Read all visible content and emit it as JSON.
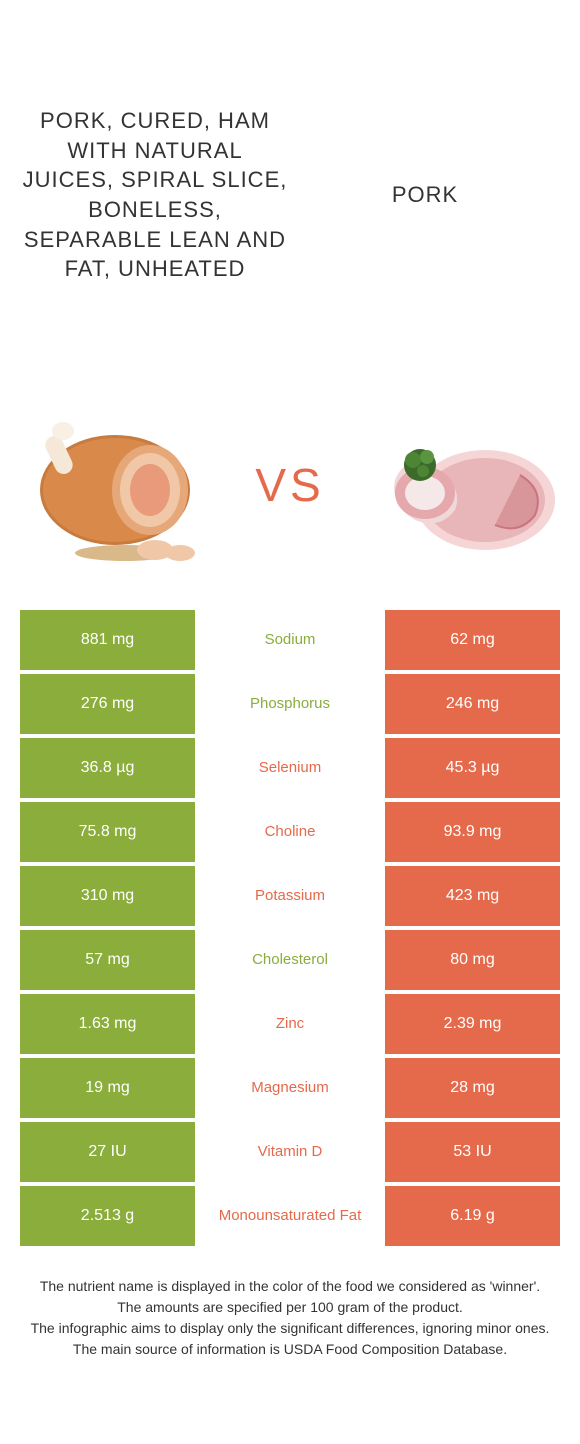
{
  "colors": {
    "green": "#8aad3b",
    "orange": "#e56a4b",
    "text": "#333333",
    "white": "#ffffff"
  },
  "header": {
    "left_title": "PORK, CURED, HAM WITH NATURAL JUICES, SPIRAL SLICE, BONELESS, SEPARABLE LEAN AND FAT, UNHEATED",
    "right_title": "PORK"
  },
  "vs_label": "VS",
  "nutrients": [
    {
      "name": "Sodium",
      "left": "881 mg",
      "right": "62 mg",
      "winner": "left"
    },
    {
      "name": "Phosphorus",
      "left": "276 mg",
      "right": "246 mg",
      "winner": "left"
    },
    {
      "name": "Selenium",
      "left": "36.8 µg",
      "right": "45.3 µg",
      "winner": "right"
    },
    {
      "name": "Choline",
      "left": "75.8 mg",
      "right": "93.9 mg",
      "winner": "right"
    },
    {
      "name": "Potassium",
      "left": "310 mg",
      "right": "423 mg",
      "winner": "right"
    },
    {
      "name": "Cholesterol",
      "left": "57 mg",
      "right": "80 mg",
      "winner": "left"
    },
    {
      "name": "Zinc",
      "left": "1.63 mg",
      "right": "2.39 mg",
      "winner": "right"
    },
    {
      "name": "Magnesium",
      "left": "19 mg",
      "right": "28 mg",
      "winner": "right"
    },
    {
      "name": "Vitamin D",
      "left": "27 IU",
      "right": "53 IU",
      "winner": "right"
    },
    {
      "name": "Monounsaturated Fat",
      "left": "2.513 g",
      "right": "6.19 g",
      "winner": "right"
    }
  ],
  "footer": {
    "line1": "The nutrient name is displayed in the color of the food we considered as 'winner'.",
    "line2": "The amounts are specified per 100 gram of the product.",
    "line3": "The infographic aims to display only the significant differences, ignoring minor ones.",
    "line4": "The main source of information is USDA Food Composition Database."
  }
}
